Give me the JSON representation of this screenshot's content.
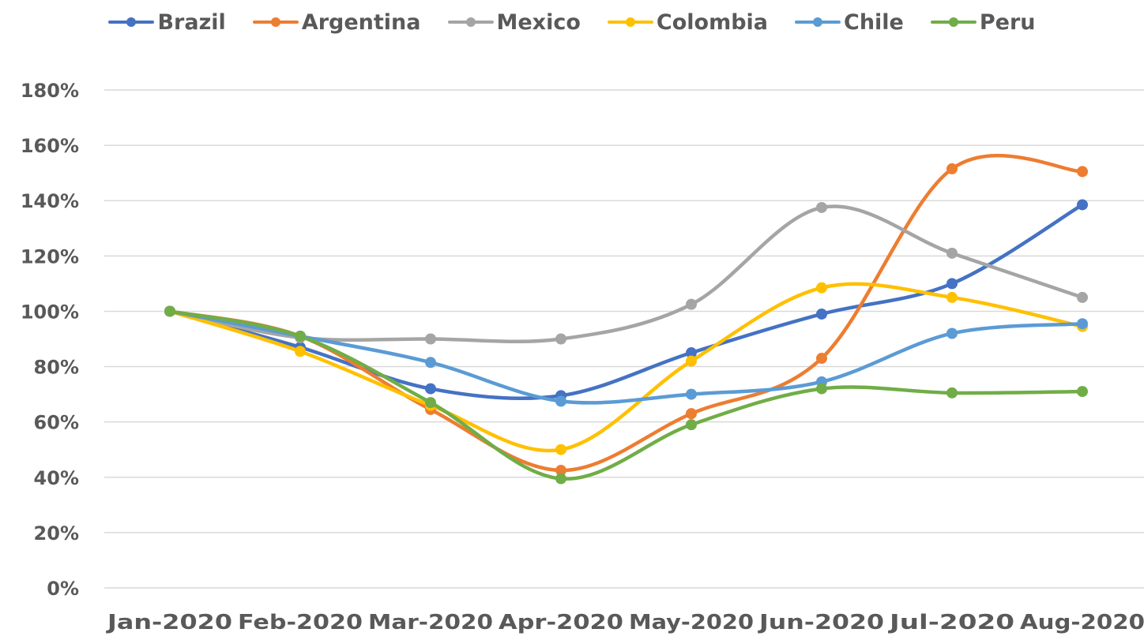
{
  "chart_data": {
    "type": "line",
    "title": "",
    "xlabel": "",
    "ylabel": "",
    "categories": [
      "Jan-2020",
      "Feb-2020",
      "Mar-2020",
      "Apr-2020",
      "May-2020",
      "Jun-2020",
      "Jul-2020",
      "Aug-2020"
    ],
    "ylim": [
      0,
      180
    ],
    "yticks": [
      "0%",
      "20%",
      "40%",
      "60%",
      "80%",
      "100%",
      "120%",
      "140%",
      "160%",
      "180%"
    ],
    "y_unit": "percent",
    "grid": "horizontal",
    "smooth": true,
    "legend_position": "top",
    "series": [
      {
        "name": "Brazil",
        "color": "#4472C4",
        "values": [
          100,
          87,
          72,
          69.5,
          85,
          99,
          110,
          138.5
        ]
      },
      {
        "name": "Argentina",
        "color": "#ED7D31",
        "values": [
          100,
          91,
          64.5,
          42.5,
          63,
          83,
          151.5,
          150.5
        ]
      },
      {
        "name": "Mexico",
        "color": "#A5A5A5",
        "values": [
          100,
          90.5,
          90,
          90,
          102.5,
          137.5,
          121,
          105
        ]
      },
      {
        "name": "Colombia",
        "color": "#FFC000",
        "values": [
          100,
          85.5,
          66,
          50,
          82,
          108.5,
          105,
          94.5
        ]
      },
      {
        "name": "Chile",
        "color": "#5B9BD5",
        "values": [
          100,
          91,
          81.5,
          67.5,
          70,
          74.5,
          92,
          95.5
        ]
      },
      {
        "name": "Peru",
        "color": "#70AD47",
        "values": [
          100,
          91,
          67,
          39.5,
          59,
          72,
          70.5,
          71
        ]
      }
    ]
  }
}
